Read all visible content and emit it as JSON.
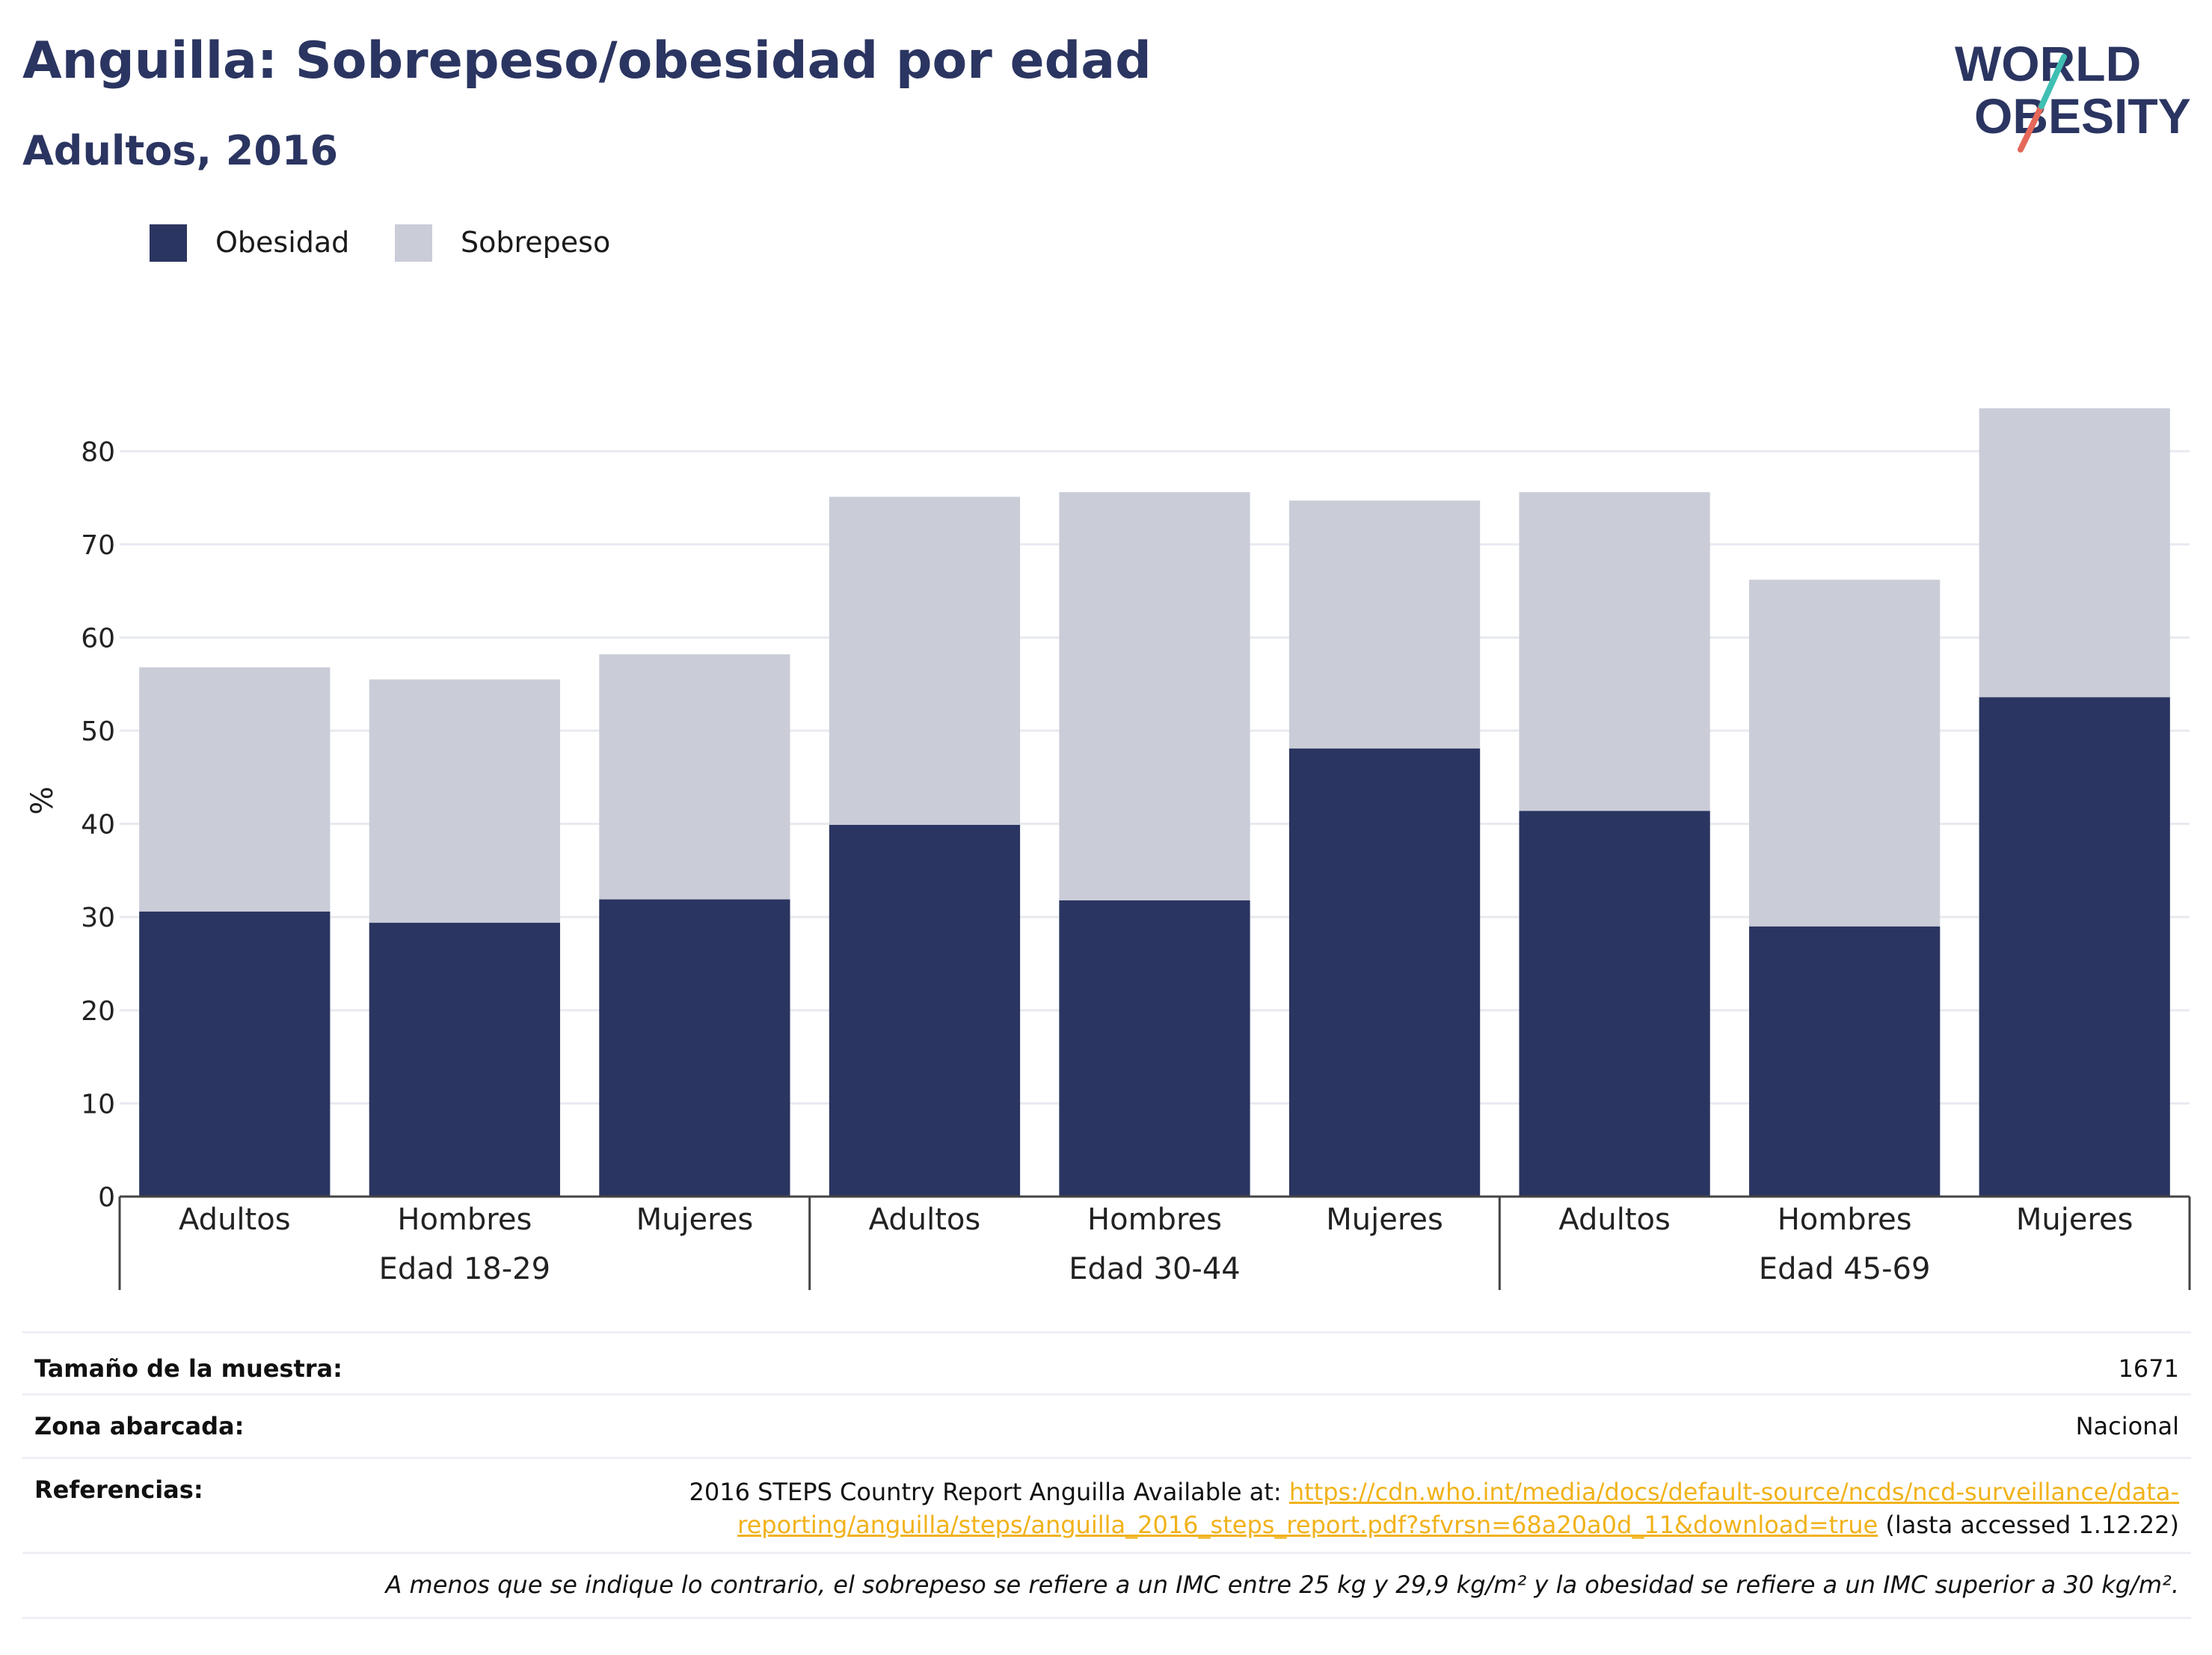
{
  "title": "Anguilla: Sobrepeso/obesidad por edad",
  "subtitle": "Adultos, 2016",
  "logo": {
    "line1": "WORLD",
    "line2": "OBESITY"
  },
  "legend": [
    {
      "label": "Obesidad",
      "color": "#2b3561"
    },
    {
      "label": "Sobrepeso",
      "color": "#cacdd8"
    }
  ],
  "chart_data": {
    "type": "bar",
    "stacked": true,
    "ylabel": "%",
    "ylim": [
      0,
      85
    ],
    "yticks": [
      0,
      10,
      20,
      30,
      40,
      50,
      60,
      70,
      80
    ],
    "grid": true,
    "legend_position": "top-left",
    "groups": [
      {
        "label": "Edad 18-29",
        "categories": [
          "Adultos",
          "Hombres",
          "Mujeres"
        ]
      },
      {
        "label": "Edad 30-44",
        "categories": [
          "Adultos",
          "Hombres",
          "Mujeres"
        ]
      },
      {
        "label": "Edad 45-69",
        "categories": [
          "Adultos",
          "Hombres",
          "Mujeres"
        ]
      }
    ],
    "categories": [
      "Adultos",
      "Hombres",
      "Mujeres",
      "Adultos",
      "Hombres",
      "Mujeres",
      "Adultos",
      "Hombres",
      "Mujeres"
    ],
    "series": [
      {
        "name": "Obesidad",
        "color": "#2b3561",
        "values": [
          30.6,
          29.4,
          31.9,
          39.9,
          31.8,
          48.1,
          41.4,
          29.0,
          53.6
        ]
      },
      {
        "name": "Sobrepeso",
        "color": "#cacdd8",
        "values": [
          26.2,
          26.1,
          26.3,
          35.2,
          43.8,
          26.6,
          34.2,
          37.2,
          31.0
        ]
      }
    ]
  },
  "footer": {
    "sample_size_label": "Tamaño de la muestra:",
    "sample_size_value": "1671",
    "area_label": "Zona abarcada:",
    "area_value": "Nacional",
    "references_label": "Referencias:",
    "references_prefix": "2016 STEPS Country Report Anguilla Available at: ",
    "references_link_part1": "https://cdn.who.int/media/docs/default-source/ncds/ncd-surveillance/data-",
    "references_link_part2": "reporting/anguilla/steps/anguilla_2016_steps_report.pdf?sfvrsn=68a20a0d_11&download=true",
    "references_suffix": " (lasta accessed 1.12.22)",
    "note": "A menos que se indique lo contrario, el sobrepeso se refiere a un IMC entre 25 kg y 29,9 kg/m² y la obesidad se refiere a un IMC superior a 30 kg/m²."
  }
}
